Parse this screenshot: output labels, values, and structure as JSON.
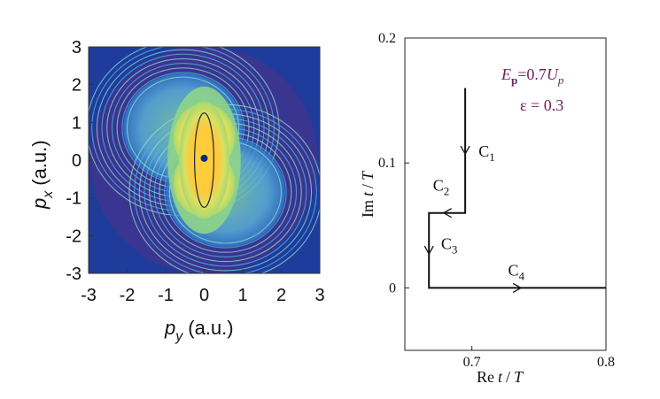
{
  "chart_data": [
    {
      "type": "heatmap",
      "xlabel": {
        "symbol": "p",
        "subscript": "y",
        "unit": "(a.u.)"
      },
      "ylabel": {
        "symbol": "p",
        "subscript": "x",
        "unit": "(a.u.)"
      },
      "xlim": [
        -3,
        3
      ],
      "ylim": [
        -3,
        3
      ],
      "x_ticks": [
        "-3",
        "-2",
        "-1",
        "0",
        "1",
        "2",
        "3"
      ],
      "y_ticks": [
        "3",
        "2",
        "1",
        "0",
        "-1",
        "-2",
        "-3"
      ],
      "grid": false,
      "colors": {
        "background": "#1f3c9c",
        "disk": "#3a3590",
        "ring": "#5aa8e8",
        "mid": "#7fd0a0",
        "core": "#ffd23a"
      },
      "overlay_ellipse": {
        "center": [
          0,
          0
        ],
        "semi_axis_y": 0.25,
        "semi_axis_x": 1.25
      },
      "center_dot": [
        0,
        0.05
      ]
    },
    {
      "type": "line",
      "xlabel": {
        "prefix": "Re",
        "var": "t",
        "suffix": "/",
        "den": "T"
      },
      "ylabel": {
        "prefix": "Im",
        "var": "t",
        "suffix": "/",
        "den": "T"
      },
      "xlim": [
        0.65,
        0.8
      ],
      "ylim": [
        -0.05,
        0.2
      ],
      "x_ticks": [
        "0.7",
        "0.8"
      ],
      "y_ticks": [
        "0.2",
        "0.1",
        "0"
      ],
      "grid": false,
      "series": [
        {
          "points": [
            [
              0.695,
              0.16
            ],
            [
              0.695,
              0.06
            ],
            [
              0.668,
              0.06
            ],
            [
              0.668,
              0.0
            ],
            [
              0.8,
              0.0
            ]
          ]
        }
      ],
      "segment_labels": [
        {
          "base": "C",
          "sub": "1",
          "at": [
            0.705,
            0.105
          ]
        },
        {
          "base": "C",
          "sub": "2",
          "at": [
            0.671,
            0.078
          ]
        },
        {
          "base": "C",
          "sub": "3",
          "at": [
            0.677,
            0.031
          ]
        },
        {
          "base": "C",
          "sub": "4",
          "at": [
            0.727,
            0.01
          ]
        }
      ],
      "annotations": {
        "energy": {
          "symbol": "E",
          "sub": "p",
          "eq": "=0.7",
          "var": "U",
          "var_sub": "p"
        },
        "epsilon": "ε = 0.3"
      },
      "annotation_color": "#6b1f5e"
    }
  ]
}
